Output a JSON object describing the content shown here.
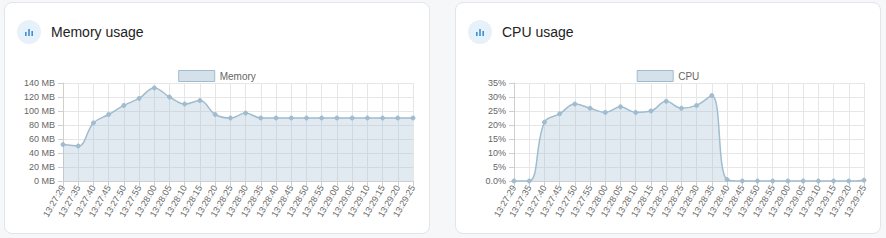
{
  "chart_data": [
    {
      "type": "line",
      "title": "Memory usage",
      "legend": "top",
      "grid": true,
      "line_style": "smooth",
      "marker": "circle",
      "categories": [
        "13:27:29",
        "13:27:35",
        "13:27:40",
        "13:27:45",
        "13:27:50",
        "13:27:55",
        "13:28:00",
        "13:28:05",
        "13:28:10",
        "13:28:15",
        "13:28:20",
        "13:28:25",
        "13:28:30",
        "13:28:35",
        "13:28:40",
        "13:28:45",
        "13:28:50",
        "13:28:55",
        "13:29:00",
        "13:29:05",
        "13:29:10",
        "13:29:15",
        "13:29:20",
        "13:29:25"
      ],
      "series": [
        {
          "name": "Memory",
          "color": "#9fbcd0",
          "values": [
            52,
            50,
            83,
            95,
            108,
            118,
            133,
            120,
            110,
            115,
            95,
            90,
            97,
            90,
            90,
            90,
            90,
            90,
            90,
            90,
            90,
            90,
            90,
            90
          ]
        }
      ],
      "ylim": [
        0,
        140
      ],
      "yticks": [
        {
          "value": 0,
          "label": "0 MB"
        },
        {
          "value": 20,
          "label": "20 MB"
        },
        {
          "value": 40,
          "label": "40 MB"
        },
        {
          "value": 60,
          "label": "60 MB"
        },
        {
          "value": 80,
          "label": "80 MB"
        },
        {
          "value": 100,
          "label": "100 MB"
        },
        {
          "value": 120,
          "label": "120 MB"
        },
        {
          "value": 140,
          "label": "140 MB"
        }
      ]
    },
    {
      "type": "line",
      "title": "CPU usage",
      "legend": "top",
      "grid": true,
      "line_style": "smooth",
      "marker": "circle",
      "categories": [
        "13:27:29",
        "13:27:35",
        "13:27:40",
        "13:27:45",
        "13:27:50",
        "13:27:55",
        "13:28:00",
        "13:28:05",
        "13:28:10",
        "13:28:15",
        "13:28:20",
        "13:28:25",
        "13:28:30",
        "13:28:35",
        "13:28:40",
        "13:28:45",
        "13:28:50",
        "13:28:55",
        "13:29:00",
        "13:29:05",
        "13:29:10",
        "13:29:15",
        "13:29:20",
        "13:29:25"
      ],
      "series": [
        {
          "name": "CPU",
          "color": "#9fbcd0",
          "values": [
            0,
            0,
            21,
            24,
            27.5,
            26,
            24.5,
            26.5,
            24.5,
            25,
            28.5,
            26,
            27,
            30.5,
            0.5,
            0,
            0,
            0,
            0,
            0,
            0,
            0,
            0,
            0.3
          ]
        }
      ],
      "ylim": [
        0,
        35
      ],
      "yticks": [
        {
          "value": 0,
          "label": "0.0%"
        },
        {
          "value": 5,
          "label": "5%"
        },
        {
          "value": 10,
          "label": "10%"
        },
        {
          "value": 15,
          "label": "15%"
        },
        {
          "value": 20,
          "label": "20%"
        },
        {
          "value": 25,
          "label": "25%"
        },
        {
          "value": 30,
          "label": "30%"
        },
        {
          "value": 35,
          "label": "35%"
        }
      ]
    }
  ]
}
